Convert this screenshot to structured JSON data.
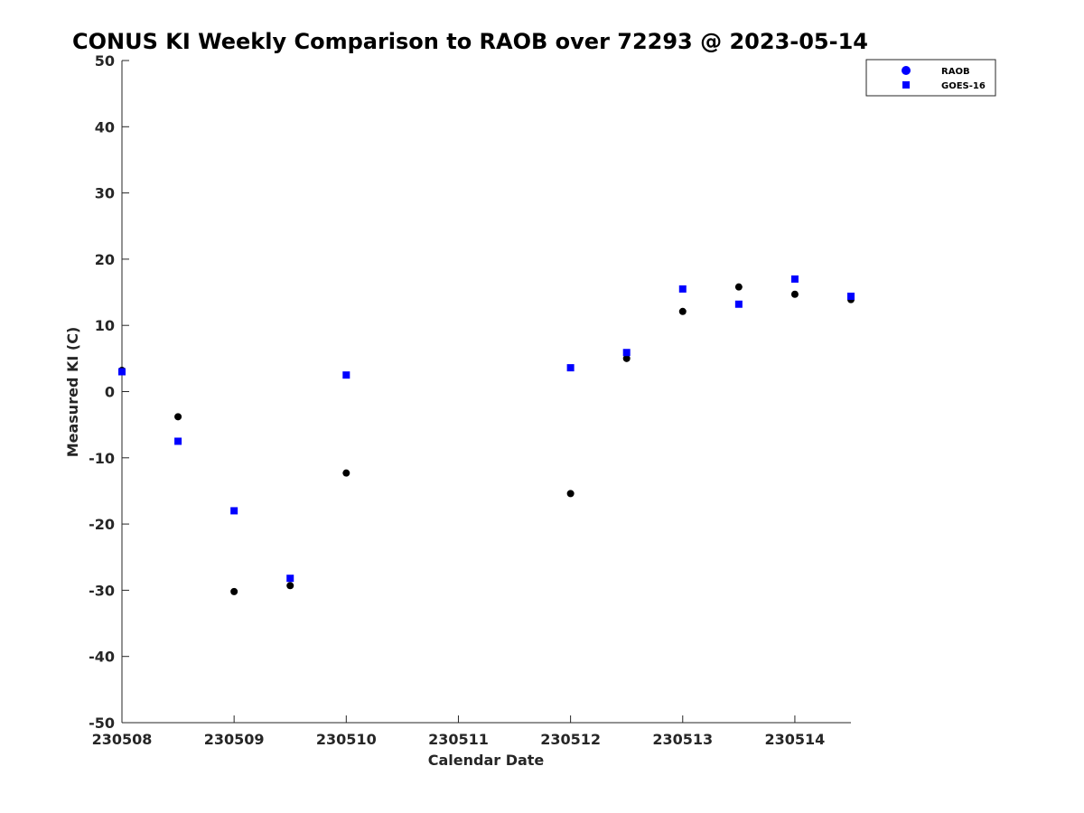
{
  "chart_data": {
    "type": "scatter",
    "title": "CONUS KI Weekly Comparison to RAOB over 72293 @ 2023-05-14",
    "xlabel": "Calendar Date",
    "ylabel": "Measured KI (C)",
    "xlim": [
      0,
      6.5
    ],
    "ylim": [
      -50,
      50
    ],
    "x_ticks": [
      0,
      1,
      2,
      3,
      4,
      5,
      6
    ],
    "x_tick_labels": [
      "230508",
      "230509",
      "230510",
      "230511",
      "230512",
      "230513",
      "230514"
    ],
    "y_ticks": [
      -50,
      -40,
      -30,
      -20,
      -10,
      0,
      10,
      20,
      30,
      40,
      50
    ],
    "y_tick_labels": [
      "-50",
      "-40",
      "-30",
      "-20",
      "-10",
      "0",
      "10",
      "20",
      "30",
      "40",
      "50"
    ],
    "grid": false,
    "legend_position": "top-right",
    "series": [
      {
        "name": "RAOB",
        "marker": "circle",
        "color": "#000000",
        "legend_color": "#0000ff",
        "x": [
          0,
          0.5,
          1,
          1.5,
          2,
          4,
          4.5,
          5,
          5.5,
          6,
          6.5
        ],
        "y": [
          3.2,
          -3.8,
          -30.2,
          -29.3,
          -12.3,
          -15.4,
          5.0,
          12.1,
          15.8,
          14.7,
          13.9
        ]
      },
      {
        "name": "GOES-16",
        "marker": "square",
        "color": "#0000ff",
        "legend_color": "#0000ff",
        "x": [
          0,
          0.5,
          1,
          1.5,
          2,
          4,
          4.5,
          5,
          5.5,
          6,
          6.5
        ],
        "y": [
          3.0,
          -7.5,
          -18.0,
          -28.2,
          2.5,
          3.6,
          5.9,
          15.5,
          13.2,
          17.0,
          14.4
        ]
      }
    ]
  }
}
